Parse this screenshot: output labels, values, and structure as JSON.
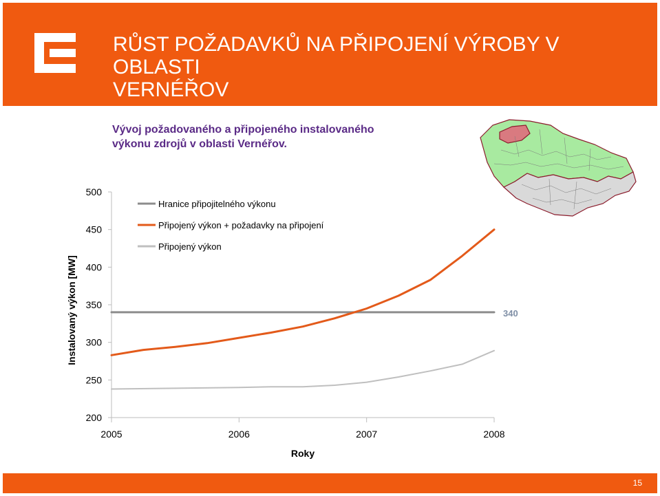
{
  "slide": {
    "title_line1": "RŮST POŽADAVKŮ NA PŘIPOJENÍ VÝROBY V OBLASTI",
    "title_line2": "VERNÉŘOV",
    "subtitle_line1": "Vývoj požadovaného a připojeného instalovaného",
    "subtitle_line2": "výkonu zdrojů v oblasti Vernéřov.",
    "page_number": "15",
    "accent_color": "#f05a10",
    "logo_icon": "cez-logo"
  },
  "chart_data": {
    "type": "line",
    "title": "",
    "xlabel": "Roky",
    "ylabel": "Instalovaný výkon [MW]",
    "xlim": [
      2005,
      2008
    ],
    "ylim": [
      200,
      500
    ],
    "x_ticks": [
      "2005",
      "2006",
      "2007",
      "2008"
    ],
    "y_ticks": [
      "500",
      "450",
      "400",
      "350",
      "300",
      "250",
      "200"
    ],
    "grid": false,
    "legend_position": "top-left",
    "series": [
      {
        "name": "Hranice připojitelného výkonu",
        "color": "#8c8c8c",
        "x": [
          2005,
          2008
        ],
        "y": [
          340,
          340
        ]
      },
      {
        "name": "Připojený výkon + požadavky na připojení",
        "color": "#e35a1a",
        "x": [
          2005,
          2005.25,
          2005.5,
          2005.75,
          2006,
          2006.25,
          2006.5,
          2006.75,
          2007,
          2007.25,
          2007.5,
          2007.75,
          2008
        ],
        "y": [
          283,
          290,
          294,
          299,
          306,
          313,
          321,
          332,
          345,
          362,
          383,
          415,
          450
        ]
      },
      {
        "name": "Připojený výkon",
        "color": "#bfbfbf",
        "x": [
          2005,
          2005.5,
          2006,
          2006.25,
          2006.5,
          2006.75,
          2007,
          2007.25,
          2007.5,
          2007.75,
          2008
        ],
        "y": [
          238,
          239,
          240,
          241,
          241,
          243,
          247,
          254,
          262,
          271,
          289
        ]
      }
    ],
    "annotations": [
      {
        "text": "340",
        "series": "Hranice připojitelného výkonu"
      }
    ]
  }
}
